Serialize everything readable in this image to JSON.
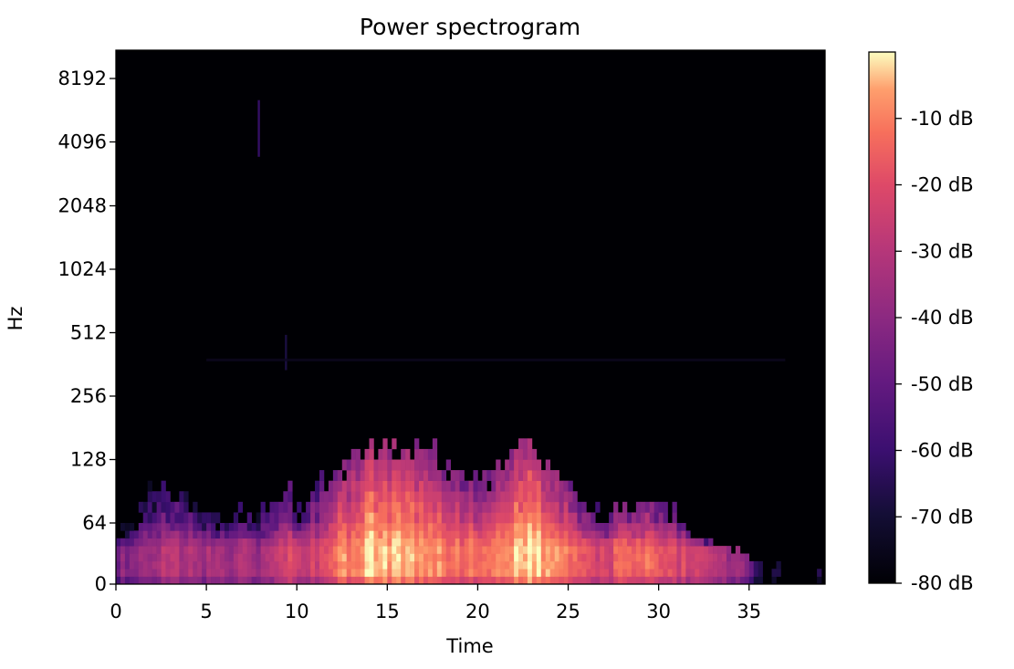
{
  "chart_data": {
    "type": "heatmap",
    "title": "Power spectrogram",
    "xlabel": "Time",
    "ylabel": "Hz",
    "xlim": [
      0,
      39.2
    ],
    "x_ticks": [
      0,
      5,
      10,
      15,
      20,
      25,
      30,
      35
    ],
    "x_tick_labels": [
      "0",
      "5",
      "10",
      "15",
      "20",
      "25",
      "30",
      "35"
    ],
    "y_scale": "symlog (base 2)",
    "y_ticks": [
      0,
      64,
      128,
      256,
      512,
      1024,
      2048,
      4096,
      8192
    ],
    "y_tick_labels": [
      "0",
      "64",
      "128",
      "256",
      "512",
      "1024",
      "2048",
      "4096",
      "8192"
    ],
    "colormap": "magma",
    "colorbar": {
      "range_db": [
        -80,
        0
      ],
      "ticks": [
        -10,
        -20,
        -30,
        -40,
        -50,
        -60,
        -70,
        -80
      ],
      "tick_labels": [
        "-10 dB",
        "-20 dB",
        "-30 dB",
        "-40 dB",
        "-50 dB",
        "-60 dB",
        "-70 dB",
        "-80 dB"
      ]
    },
    "background_db": -80,
    "energy_envelope": {
      "time": [
        0,
        1,
        2,
        3,
        4,
        5,
        6,
        7,
        8,
        9,
        9.5,
        10,
        11,
        12,
        13,
        14,
        15,
        16,
        17,
        18,
        19,
        20,
        21,
        22,
        23,
        24,
        25,
        26,
        27,
        28,
        29,
        30,
        31,
        32,
        33,
        34,
        35,
        35.5,
        36.5,
        38.5,
        39
      ],
      "peak_db": [
        -45,
        -38,
        -32,
        -30,
        -32,
        -35,
        -35,
        -30,
        -35,
        -25,
        -20,
        -30,
        -25,
        -15,
        -8,
        -2,
        -3,
        -5,
        -4,
        -10,
        -12,
        -10,
        -8,
        -4,
        -3,
        -5,
        -12,
        -18,
        -22,
        -15,
        -12,
        -14,
        -20,
        -25,
        -30,
        -35,
        -45,
        -60,
        -65,
        -75,
        -60
      ],
      "max_freq_hz": [
        48,
        64,
        88,
        88,
        80,
        72,
        64,
        72,
        72,
        80,
        96,
        64,
        96,
        112,
        128,
        152,
        144,
        152,
        152,
        128,
        112,
        96,
        112,
        144,
        152,
        120,
        96,
        80,
        64,
        80,
        80,
        80,
        72,
        48,
        40,
        36,
        32,
        24,
        20,
        16,
        24
      ]
    },
    "faint_features": [
      {
        "time": 7.9,
        "freq_range_hz": [
          3500,
          6500
        ],
        "db": -62
      },
      {
        "time": 9.4,
        "freq_range_hz": [
          340,
          500
        ],
        "db": -68
      },
      {
        "time_range": [
          5,
          37
        ],
        "freq_hz": 380,
        "db": -74
      }
    ]
  }
}
